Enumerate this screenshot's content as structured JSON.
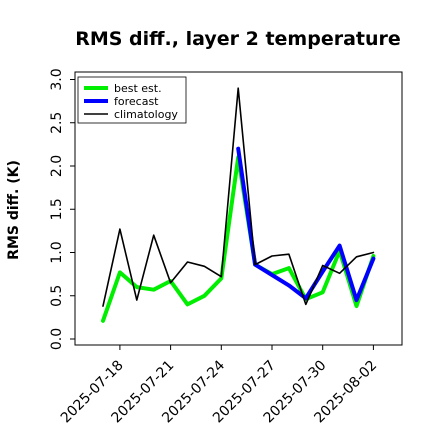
{
  "chart_data": {
    "type": "line",
    "title": "RMS diff., layer 2 temperature",
    "xlabel": "",
    "ylabel": "RMS diff. (K)",
    "x_tick_labels": [
      {
        "label": "2025-07-18",
        "color": "#000000"
      },
      {
        "label": "2025-07-21",
        "color": "#000000"
      },
      {
        "label": "2025-07-24",
        "color": "#228b22"
      },
      {
        "label": "2025-07-27",
        "color": "#000000"
      },
      {
        "label": "2025-07-30",
        "color": "#000000"
      },
      {
        "label": "2025-08-02",
        "color": "#000000"
      }
    ],
    "y_ticks": [
      "0.0",
      "0.5",
      "1.0",
      "1.5",
      "2.0",
      "2.5",
      "3.0"
    ],
    "ylim": [
      0,
      3.1
    ],
    "grid": false,
    "legend_position": "top-left",
    "series": [
      {
        "name": "best est.",
        "color": "#00ee00",
        "width": 4,
        "x": [
          "2025-07-17",
          "2025-07-18",
          "2025-07-19",
          "2025-07-20",
          "2025-07-21",
          "2025-07-22",
          "2025-07-23",
          "2025-07-24",
          "2025-07-25",
          "2025-07-26",
          "2025-07-27",
          "2025-07-28",
          "2025-07-29",
          "2025-07-30",
          "2025-07-31",
          "2025-08-01",
          "2025-08-02"
        ],
        "values": [
          0.21,
          0.77,
          0.6,
          0.57,
          0.67,
          0.4,
          0.5,
          0.7,
          2.1,
          0.86,
          0.75,
          0.82,
          0.46,
          0.54,
          1.02,
          0.38,
          0.96
        ]
      },
      {
        "name": "forecast",
        "color": "#0000ff",
        "width": 4,
        "x": [
          "2025-07-25",
          "2025-07-26",
          "2025-07-27",
          "2025-07-28",
          "2025-07-29",
          "2025-07-30",
          "2025-07-31",
          "2025-08-01",
          "2025-08-02"
        ],
        "values": [
          2.2,
          0.86,
          0.74,
          0.62,
          0.47,
          0.78,
          1.08,
          0.45,
          0.93
        ]
      },
      {
        "name": "climatology",
        "color": "#000000",
        "width": 1.6,
        "x": [
          "2025-07-17",
          "2025-07-18",
          "2025-07-19",
          "2025-07-20",
          "2025-07-21",
          "2025-07-22",
          "2025-07-23",
          "2025-07-24",
          "2025-07-25",
          "2025-07-26",
          "2025-07-27",
          "2025-07-28",
          "2025-07-29",
          "2025-07-30",
          "2025-07-31",
          "2025-08-01",
          "2025-08-02"
        ],
        "values": [
          0.38,
          1.27,
          0.45,
          1.2,
          0.65,
          0.89,
          0.84,
          0.72,
          2.9,
          0.86,
          0.96,
          0.98,
          0.4,
          0.85,
          0.76,
          0.95,
          1.0
        ]
      }
    ]
  }
}
